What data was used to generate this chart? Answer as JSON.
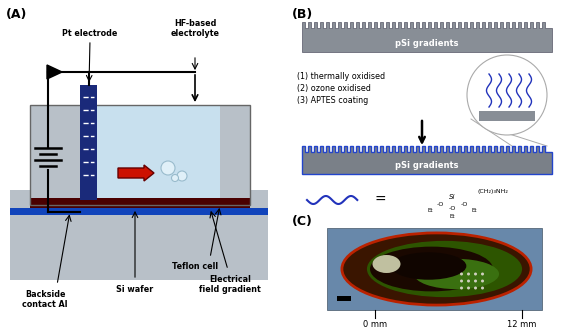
{
  "panel_A_label": "(A)",
  "panel_B_label": "(B)",
  "panel_C_label": "(C)",
  "bg_color": "#ffffff",
  "gray_light": "#b8c0c8",
  "gray_medium": "#9aa0a8",
  "blue_dark": "#1a2a7a",
  "blue_medium": "#2244bb",
  "light_blue": "#c8e0ee",
  "red_arrow": "#cc1100",
  "dark_red_si": "#4a0000",
  "al_blue": "#1144bb",
  "psi_gray": "#888e96",
  "psi_gray2": "#7a8088",
  "psi_blue_line": "#2244cc",
  "wavy_blue": "#2233bb",
  "circle_gray": "#aaaaaa",
  "photo_bg": "#6888aa",
  "text_black": "#000000",
  "battery_color": "#111111"
}
